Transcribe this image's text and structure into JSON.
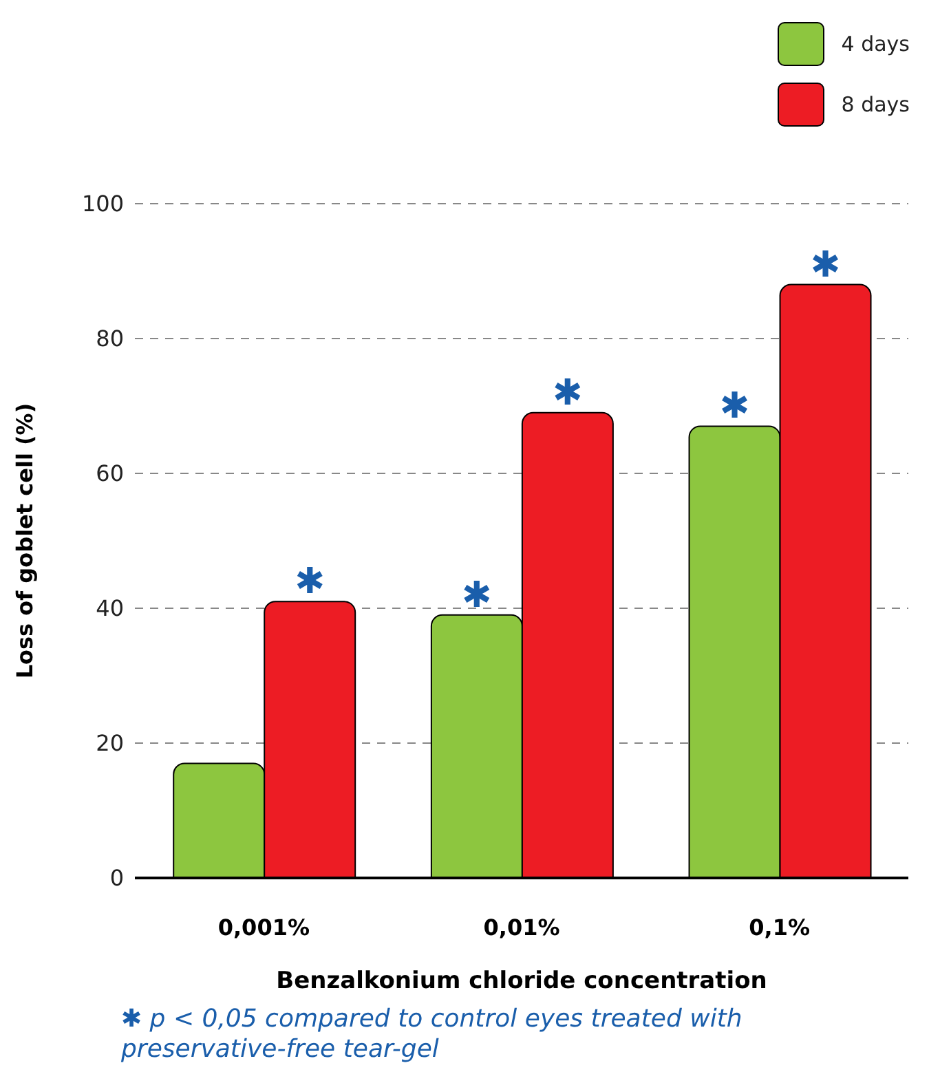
{
  "chart_data": {
    "type": "bar",
    "ylabel": "Loss of goblet cell (%)",
    "xlabel": "Benzalkonium chloride concentration",
    "categories": [
      "0,001%",
      "0,01%",
      "0,1%"
    ],
    "series": [
      {
        "name": "4 days",
        "color": "#8dc63f",
        "values": [
          17,
          39,
          67
        ],
        "value_labels": [
          null,
          "✱",
          "✱"
        ]
      },
      {
        "name": "8 days",
        "color": "#ed1c24",
        "values": [
          41,
          69,
          88
        ],
        "value_labels": [
          "✱",
          "✱",
          "✱"
        ]
      }
    ],
    "ylim": [
      0,
      100
    ],
    "yticks": [
      0,
      20,
      40,
      60,
      80,
      100
    ],
    "grid": "y",
    "legend": "top right",
    "annotations": [
      "✱ p < 0,05 compared to control eyes treated with preservative-free tear-gel"
    ]
  }
}
